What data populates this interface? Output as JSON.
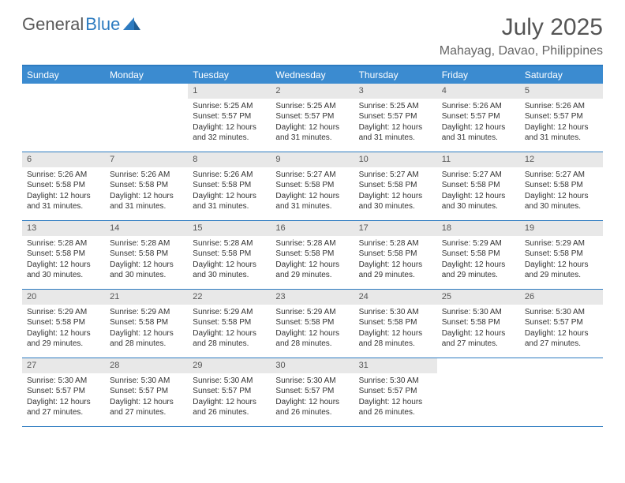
{
  "brand": {
    "part1": "General",
    "part2": "Blue"
  },
  "title": "July 2025",
  "location": "Mahayag, Davao, Philippines",
  "colors": {
    "header_bg": "#3b8bd0",
    "border": "#2d7bc0",
    "daynum_bg": "#e8e8e8",
    "text": "#333333",
    "title": "#555555"
  },
  "weekdays": [
    "Sunday",
    "Monday",
    "Tuesday",
    "Wednesday",
    "Thursday",
    "Friday",
    "Saturday"
  ],
  "weeks": [
    [
      {
        "n": "",
        "sr": "",
        "ss": "",
        "dl": ""
      },
      {
        "n": "",
        "sr": "",
        "ss": "",
        "dl": ""
      },
      {
        "n": "1",
        "sr": "Sunrise: 5:25 AM",
        "ss": "Sunset: 5:57 PM",
        "dl": "Daylight: 12 hours and 32 minutes."
      },
      {
        "n": "2",
        "sr": "Sunrise: 5:25 AM",
        "ss": "Sunset: 5:57 PM",
        "dl": "Daylight: 12 hours and 31 minutes."
      },
      {
        "n": "3",
        "sr": "Sunrise: 5:25 AM",
        "ss": "Sunset: 5:57 PM",
        "dl": "Daylight: 12 hours and 31 minutes."
      },
      {
        "n": "4",
        "sr": "Sunrise: 5:26 AM",
        "ss": "Sunset: 5:57 PM",
        "dl": "Daylight: 12 hours and 31 minutes."
      },
      {
        "n": "5",
        "sr": "Sunrise: 5:26 AM",
        "ss": "Sunset: 5:57 PM",
        "dl": "Daylight: 12 hours and 31 minutes."
      }
    ],
    [
      {
        "n": "6",
        "sr": "Sunrise: 5:26 AM",
        "ss": "Sunset: 5:58 PM",
        "dl": "Daylight: 12 hours and 31 minutes."
      },
      {
        "n": "7",
        "sr": "Sunrise: 5:26 AM",
        "ss": "Sunset: 5:58 PM",
        "dl": "Daylight: 12 hours and 31 minutes."
      },
      {
        "n": "8",
        "sr": "Sunrise: 5:26 AM",
        "ss": "Sunset: 5:58 PM",
        "dl": "Daylight: 12 hours and 31 minutes."
      },
      {
        "n": "9",
        "sr": "Sunrise: 5:27 AM",
        "ss": "Sunset: 5:58 PM",
        "dl": "Daylight: 12 hours and 31 minutes."
      },
      {
        "n": "10",
        "sr": "Sunrise: 5:27 AM",
        "ss": "Sunset: 5:58 PM",
        "dl": "Daylight: 12 hours and 30 minutes."
      },
      {
        "n": "11",
        "sr": "Sunrise: 5:27 AM",
        "ss": "Sunset: 5:58 PM",
        "dl": "Daylight: 12 hours and 30 minutes."
      },
      {
        "n": "12",
        "sr": "Sunrise: 5:27 AM",
        "ss": "Sunset: 5:58 PM",
        "dl": "Daylight: 12 hours and 30 minutes."
      }
    ],
    [
      {
        "n": "13",
        "sr": "Sunrise: 5:28 AM",
        "ss": "Sunset: 5:58 PM",
        "dl": "Daylight: 12 hours and 30 minutes."
      },
      {
        "n": "14",
        "sr": "Sunrise: 5:28 AM",
        "ss": "Sunset: 5:58 PM",
        "dl": "Daylight: 12 hours and 30 minutes."
      },
      {
        "n": "15",
        "sr": "Sunrise: 5:28 AM",
        "ss": "Sunset: 5:58 PM",
        "dl": "Daylight: 12 hours and 30 minutes."
      },
      {
        "n": "16",
        "sr": "Sunrise: 5:28 AM",
        "ss": "Sunset: 5:58 PM",
        "dl": "Daylight: 12 hours and 29 minutes."
      },
      {
        "n": "17",
        "sr": "Sunrise: 5:28 AM",
        "ss": "Sunset: 5:58 PM",
        "dl": "Daylight: 12 hours and 29 minutes."
      },
      {
        "n": "18",
        "sr": "Sunrise: 5:29 AM",
        "ss": "Sunset: 5:58 PM",
        "dl": "Daylight: 12 hours and 29 minutes."
      },
      {
        "n": "19",
        "sr": "Sunrise: 5:29 AM",
        "ss": "Sunset: 5:58 PM",
        "dl": "Daylight: 12 hours and 29 minutes."
      }
    ],
    [
      {
        "n": "20",
        "sr": "Sunrise: 5:29 AM",
        "ss": "Sunset: 5:58 PM",
        "dl": "Daylight: 12 hours and 29 minutes."
      },
      {
        "n": "21",
        "sr": "Sunrise: 5:29 AM",
        "ss": "Sunset: 5:58 PM",
        "dl": "Daylight: 12 hours and 28 minutes."
      },
      {
        "n": "22",
        "sr": "Sunrise: 5:29 AM",
        "ss": "Sunset: 5:58 PM",
        "dl": "Daylight: 12 hours and 28 minutes."
      },
      {
        "n": "23",
        "sr": "Sunrise: 5:29 AM",
        "ss": "Sunset: 5:58 PM",
        "dl": "Daylight: 12 hours and 28 minutes."
      },
      {
        "n": "24",
        "sr": "Sunrise: 5:30 AM",
        "ss": "Sunset: 5:58 PM",
        "dl": "Daylight: 12 hours and 28 minutes."
      },
      {
        "n": "25",
        "sr": "Sunrise: 5:30 AM",
        "ss": "Sunset: 5:58 PM",
        "dl": "Daylight: 12 hours and 27 minutes."
      },
      {
        "n": "26",
        "sr": "Sunrise: 5:30 AM",
        "ss": "Sunset: 5:57 PM",
        "dl": "Daylight: 12 hours and 27 minutes."
      }
    ],
    [
      {
        "n": "27",
        "sr": "Sunrise: 5:30 AM",
        "ss": "Sunset: 5:57 PM",
        "dl": "Daylight: 12 hours and 27 minutes."
      },
      {
        "n": "28",
        "sr": "Sunrise: 5:30 AM",
        "ss": "Sunset: 5:57 PM",
        "dl": "Daylight: 12 hours and 27 minutes."
      },
      {
        "n": "29",
        "sr": "Sunrise: 5:30 AM",
        "ss": "Sunset: 5:57 PM",
        "dl": "Daylight: 12 hours and 26 minutes."
      },
      {
        "n": "30",
        "sr": "Sunrise: 5:30 AM",
        "ss": "Sunset: 5:57 PM",
        "dl": "Daylight: 12 hours and 26 minutes."
      },
      {
        "n": "31",
        "sr": "Sunrise: 5:30 AM",
        "ss": "Sunset: 5:57 PM",
        "dl": "Daylight: 12 hours and 26 minutes."
      },
      {
        "n": "",
        "sr": "",
        "ss": "",
        "dl": ""
      },
      {
        "n": "",
        "sr": "",
        "ss": "",
        "dl": ""
      }
    ]
  ]
}
